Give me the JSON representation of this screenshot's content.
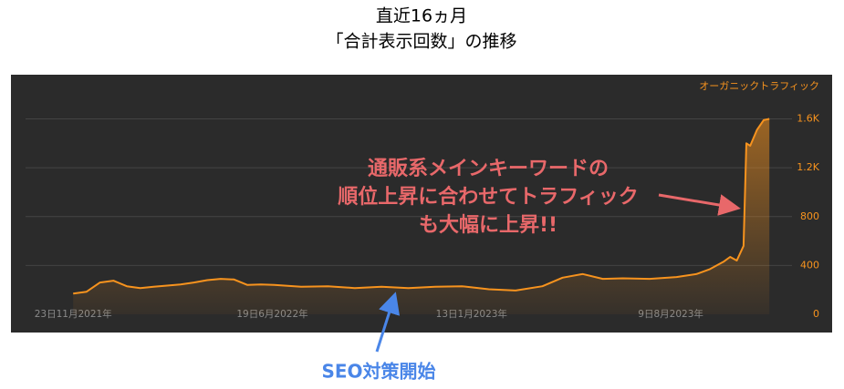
{
  "chart_data": {
    "type": "line",
    "title": "直近16ヵ月",
    "subtitle": "「合計表示回数」の推移",
    "x": [
      "2021-11-23",
      "2021-12-07",
      "2021-12-21",
      "2022-01-04",
      "2022-01-18",
      "2022-02-01",
      "2022-02-15",
      "2022-03-01",
      "2022-03-15",
      "2022-03-29",
      "2022-04-12",
      "2022-04-26",
      "2022-05-10",
      "2022-05-24",
      "2022-06-07",
      "2022-06-21",
      "2022-07-19",
      "2022-08-16",
      "2022-09-13",
      "2022-10-11",
      "2022-11-08",
      "2022-12-06",
      "2023-01-03",
      "2023-01-31",
      "2023-02-28",
      "2023-03-28",
      "2023-04-18",
      "2023-05-09",
      "2023-05-30",
      "2023-06-20",
      "2023-07-18",
      "2023-08-15",
      "2023-09-05",
      "2023-09-19",
      "2023-10-03",
      "2023-10-10",
      "2023-10-17",
      "2023-10-24",
      "2023-10-27",
      "2023-10-31",
      "2023-11-07",
      "2023-11-14",
      "2023-11-20"
    ],
    "series": [
      {
        "name": "オーガニックトラフィック",
        "color": "#f7931e",
        "values": [
          170,
          185,
          260,
          275,
          230,
          215,
          225,
          235,
          245,
          260,
          280,
          290,
          285,
          240,
          245,
          240,
          225,
          230,
          215,
          225,
          215,
          225,
          230,
          205,
          195,
          230,
          300,
          330,
          290,
          295,
          290,
          305,
          330,
          370,
          430,
          470,
          440,
          560,
          1400,
          1380,
          1510,
          1590,
          1600
        ]
      }
    ],
    "xlim": [
      "2021-09-19",
      "2023-12-06"
    ],
    "xticks": [
      {
        "value": "2021-11-23",
        "label": "23日11月2021年"
      },
      {
        "value": "2022-06-19",
        "label": "19日6月2022年"
      },
      {
        "value": "2023-01-13",
        "label": "13日1月2023年"
      },
      {
        "value": "2023-08-09",
        "label": "9日8月2023年"
      }
    ],
    "ylim": [
      0,
      1850
    ],
    "yticks": [
      0,
      400,
      800,
      {
        "value": 1200,
        "label": "1.2K"
      },
      {
        "value": 1600,
        "label": "1.6K"
      }
    ],
    "grid": true,
    "legend": "top-right",
    "annotations": {
      "callout": [
        "通販系メインキーワードの",
        "順位上昇に合わせてトラフィック",
        "も大幅に上昇!!"
      ],
      "callout_color": "#e8686a",
      "start_note": "SEO対策開始",
      "start_note_color": "#4a86e8"
    }
  }
}
